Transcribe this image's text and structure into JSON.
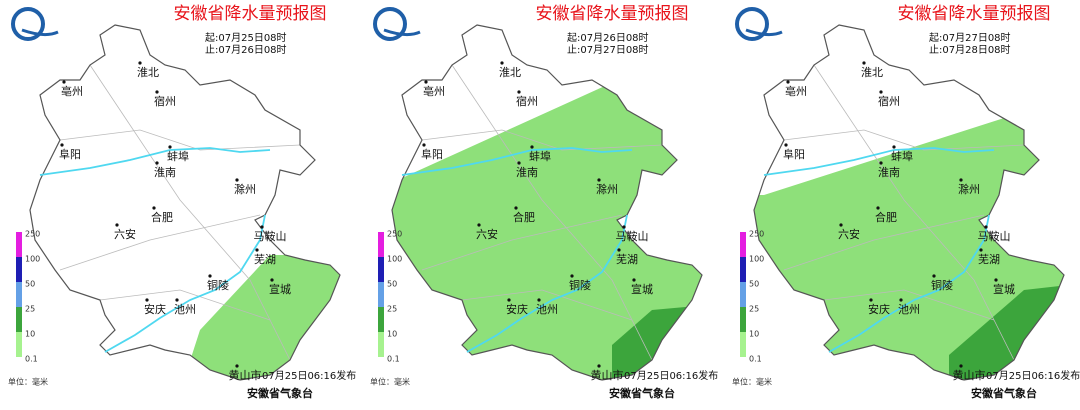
{
  "panels": [
    {
      "title": "安徽省降水量预报图",
      "start": "起:07月25日08时",
      "end": "止:07月26日08时",
      "cities": [
        "淮北",
        "亳州",
        "宿州",
        "蚌埠",
        "阜阳",
        "淮南",
        "滁州",
        "合肥",
        "六安",
        "马鞍山",
        "芜湖",
        "铜陵",
        "宣城",
        "安庆",
        "池州",
        "黄山市"
      ],
      "legend": {
        "ticks": [
          250,
          100,
          50,
          25,
          10,
          0.1
        ],
        "unit": "单位：毫米"
      },
      "issued": "07月25日06:16发布",
      "agency": "安徽省气象台"
    },
    {
      "title": "安徽省降水量预报图",
      "start": "起:07月26日08时",
      "end": "止:07月27日08时",
      "cities": [
        "淮北",
        "亳州",
        "宿州",
        "蚌埠",
        "阜阳",
        "淮南",
        "滁州",
        "合肥",
        "六安",
        "马鞍山",
        "芜湖",
        "铜陵",
        "宣城",
        "安庆",
        "池州",
        "黄山市"
      ],
      "legend": {
        "ticks": [
          250,
          100,
          50,
          25,
          10,
          0.1
        ],
        "unit": "单位：毫米"
      },
      "issued": "07月25日06:16发布",
      "agency": "安徽省气象台"
    },
    {
      "title": "安徽省降水量预报图",
      "start": "起:07月27日08时",
      "end": "止:07月28日08时",
      "cities": [
        "淮北",
        "亳州",
        "宿州",
        "蚌埠",
        "阜阳",
        "淮南",
        "滁州",
        "合肥",
        "六安",
        "马鞍山",
        "芜湖",
        "铜陵",
        "宣城",
        "安庆",
        "池州",
        "黄山市"
      ],
      "legend": {
        "ticks": [
          250,
          100,
          50,
          25,
          10,
          0.1
        ],
        "unit": "单位：毫米"
      },
      "issued": "07月25日06:16发布",
      "agency": "安徽省气象台"
    }
  ]
}
